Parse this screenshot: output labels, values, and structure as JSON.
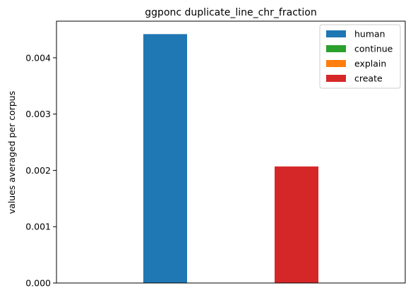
{
  "chart_data": {
    "type": "bar",
    "title": "ggponc duplicate_line_chr_fraction",
    "xlabel": "",
    "ylabel": "values averaged per corpus",
    "ylim": [
      0,
      0.00465
    ],
    "yticks": [
      "0.000",
      "0.001",
      "0.002",
      "0.003",
      "0.004"
    ],
    "ytick_values": [
      0,
      0.001,
      0.002,
      0.003,
      0.004
    ],
    "grid": false,
    "legend_position": "top-right",
    "series": [
      {
        "name": "human",
        "color": "#1f77b4",
        "value": 0.00442
      },
      {
        "name": "continue",
        "color": "#2ca02c",
        "value": 0
      },
      {
        "name": "explain",
        "color": "#ff7f0e",
        "value": 0
      },
      {
        "name": "create",
        "color": "#d62728",
        "value": 0.00207
      }
    ]
  }
}
